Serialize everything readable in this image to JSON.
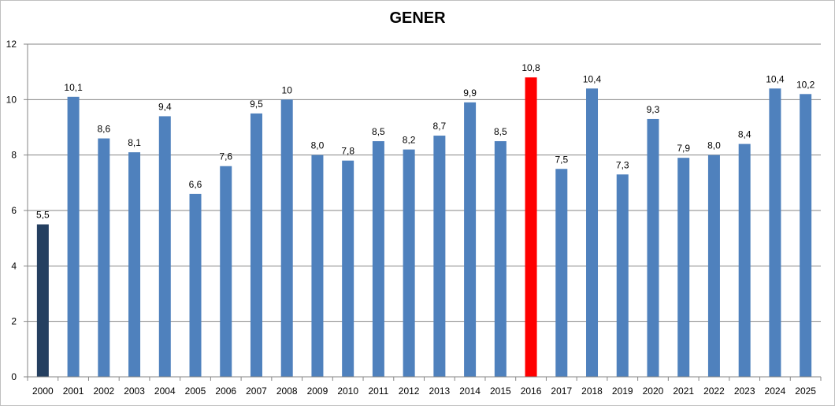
{
  "chart_data": {
    "type": "bar",
    "title": "GENER",
    "xlabel": "",
    "ylabel": "",
    "ylim": [
      0,
      12
    ],
    "yticks": [
      0,
      2,
      4,
      6,
      8,
      10,
      12
    ],
    "grid": true,
    "legend": "none",
    "categories": [
      "2000",
      "2001",
      "2002",
      "2003",
      "2004",
      "2005",
      "2006",
      "2007",
      "2008",
      "2009",
      "2010",
      "2011",
      "2012",
      "2013",
      "2014",
      "2015",
      "2016",
      "2017",
      "2018",
      "2019",
      "2020",
      "2021",
      "2022",
      "2023",
      "2024",
      "2025"
    ],
    "values": [
      5.5,
      10.1,
      8.6,
      8.1,
      9.4,
      6.6,
      7.6,
      9.5,
      10,
      8.0,
      7.8,
      8.5,
      8.2,
      8.7,
      9.9,
      8.5,
      10.8,
      7.5,
      10.4,
      7.3,
      9.3,
      7.9,
      8.0,
      8.4,
      10.4,
      10.2
    ],
    "data_labels": [
      "5,5",
      "10,1",
      "8,6",
      "8,1",
      "9,4",
      "6,6",
      "7,6",
      "9,5",
      "10",
      "8,0",
      "7,8",
      "8,5",
      "8,2",
      "8,7",
      "9,9",
      "8,5",
      "10,8",
      "7,5",
      "10,4",
      "7,3",
      "9,3",
      "7,9",
      "8,0",
      "8,4",
      "10,4",
      "10,2"
    ],
    "colors": {
      "default": "#4f81bd",
      "highlight_first": "#243f60",
      "highlight_max": "#ff0000"
    },
    "bar_colors": [
      "#243f60",
      "#4f81bd",
      "#4f81bd",
      "#4f81bd",
      "#4f81bd",
      "#4f81bd",
      "#4f81bd",
      "#4f81bd",
      "#4f81bd",
      "#4f81bd",
      "#4f81bd",
      "#4f81bd",
      "#4f81bd",
      "#4f81bd",
      "#4f81bd",
      "#4f81bd",
      "#ff0000",
      "#4f81bd",
      "#4f81bd",
      "#4f81bd",
      "#4f81bd",
      "#4f81bd",
      "#4f81bd",
      "#4f81bd",
      "#4f81bd",
      "#4f81bd"
    ]
  }
}
